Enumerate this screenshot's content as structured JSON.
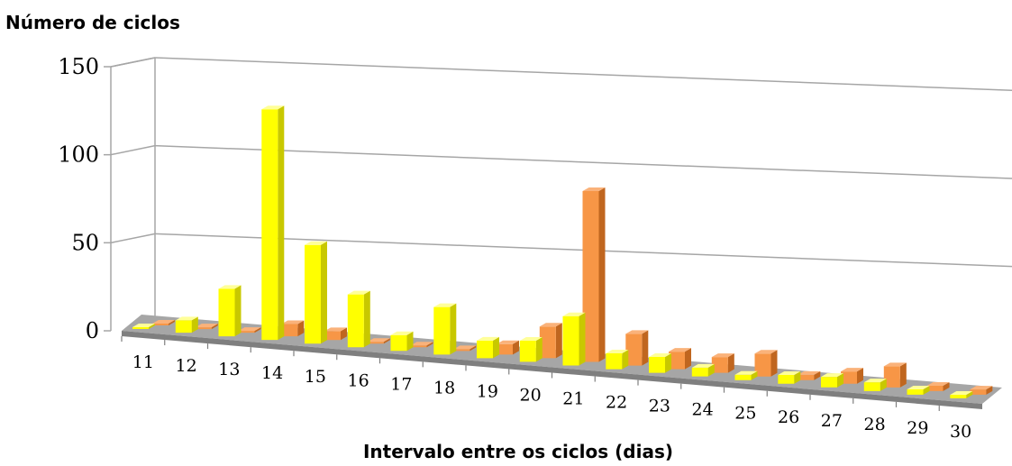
{
  "chart_data": {
    "type": "bar",
    "title": "",
    "ylabel": "Número de ciclos",
    "xlabel": "Intervalo entre os ciclos (dias)",
    "categories": [
      "11",
      "12",
      "13",
      "14",
      "15",
      "16",
      "17",
      "18",
      "19",
      "20",
      "21",
      "22",
      "23",
      "24",
      "25",
      "26",
      "27",
      "28",
      "29",
      "30"
    ],
    "ylim": [
      0,
      150
    ],
    "yticks": [
      0,
      50,
      100,
      150
    ],
    "series": [
      {
        "color": "#ffff00",
        "values": [
          1,
          7,
          27,
          131,
          56,
          30,
          9,
          27,
          10,
          12,
          28,
          9,
          9,
          5,
          3,
          5,
          6,
          5,
          3,
          2
        ]
      },
      {
        "color": "#f79646",
        "values": [
          1,
          1,
          1,
          7,
          5,
          1,
          1,
          1,
          6,
          18,
          97,
          18,
          10,
          9,
          13,
          3,
          7,
          12,
          3,
          3
        ]
      }
    ],
    "grid": true,
    "legend": "none"
  }
}
